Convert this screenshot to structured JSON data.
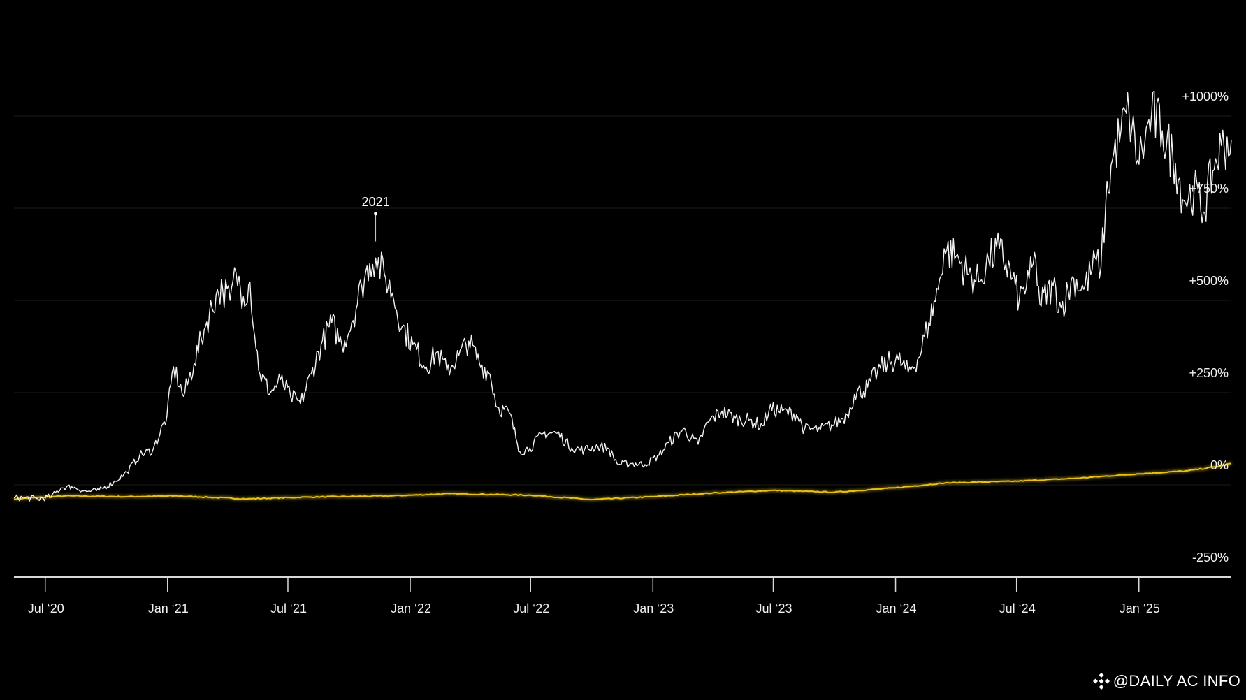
{
  "chart_data": {
    "type": "line",
    "title": "",
    "xlabel": "",
    "ylabel": "",
    "x_range": [
      "2020-05-15",
      "2025-05-20"
    ],
    "ylim": [
      -300,
      1100
    ],
    "y_ticks": [
      {
        "value": 1000,
        "label": "+1000%"
      },
      {
        "value": 750,
        "label": "+750%"
      },
      {
        "value": 500,
        "label": "+500%"
      },
      {
        "value": 250,
        "label": "+250%"
      },
      {
        "value": 0,
        "label": "0%"
      },
      {
        "value": -250,
        "label": "-250%"
      }
    ],
    "x_ticks": [
      {
        "date": "2020-07-01",
        "label": "Jul ‘20"
      },
      {
        "date": "2021-01-01",
        "label": "Jan ‘21"
      },
      {
        "date": "2021-07-01",
        "label": "Jul ‘21"
      },
      {
        "date": "2022-01-01",
        "label": "Jan ‘22"
      },
      {
        "date": "2022-07-01",
        "label": "Jul ‘22"
      },
      {
        "date": "2023-01-01",
        "label": "Jan ‘23"
      },
      {
        "date": "2023-07-01",
        "label": "Jul ‘23"
      },
      {
        "date": "2024-01-01",
        "label": "Jan ‘24"
      },
      {
        "date": "2024-07-01",
        "label": "Jul ‘24"
      },
      {
        "date": "2025-01-01",
        "label": "Jan ‘25"
      }
    ],
    "grid": true,
    "legend": "none",
    "annotations": [
      {
        "label": "2021",
        "date": "2021-11-10",
        "value": 660
      }
    ],
    "series": [
      {
        "color": "#f2f2f2",
        "points": [
          [
            "2020-05-15",
            -35
          ],
          [
            "2020-06-01",
            -35
          ],
          [
            "2020-06-20",
            -38
          ],
          [
            "2020-07-10",
            -32
          ],
          [
            "2020-07-25",
            -8
          ],
          [
            "2020-08-10",
            -5
          ],
          [
            "2020-09-01",
            -18
          ],
          [
            "2020-09-20",
            -15
          ],
          [
            "2020-10-15",
            10
          ],
          [
            "2020-11-01",
            35
          ],
          [
            "2020-11-20",
            80
          ],
          [
            "2020-12-10",
            95
          ],
          [
            "2020-12-31",
            185
          ],
          [
            "2021-01-10",
            320
          ],
          [
            "2021-01-25",
            240
          ],
          [
            "2021-02-10",
            330
          ],
          [
            "2021-02-25",
            420
          ],
          [
            "2021-03-15",
            515
          ],
          [
            "2021-03-25",
            530
          ],
          [
            "2021-04-05",
            500
          ],
          [
            "2021-04-14",
            575
          ],
          [
            "2021-04-25",
            510
          ],
          [
            "2021-05-05",
            550
          ],
          [
            "2021-05-12",
            405
          ],
          [
            "2021-05-20",
            300
          ],
          [
            "2021-06-05",
            250
          ],
          [
            "2021-06-20",
            285
          ],
          [
            "2021-07-05",
            240
          ],
          [
            "2021-07-20",
            220
          ],
          [
            "2021-08-05",
            300
          ],
          [
            "2021-08-20",
            380
          ],
          [
            "2021-09-05",
            440
          ],
          [
            "2021-09-20",
            380
          ],
          [
            "2021-10-05",
            440
          ],
          [
            "2021-10-20",
            540
          ],
          [
            "2021-11-01",
            600
          ],
          [
            "2021-11-10",
            615
          ],
          [
            "2021-11-25",
            560
          ],
          [
            "2021-12-05",
            520
          ],
          [
            "2021-12-20",
            430
          ],
          [
            "2022-01-05",
            380
          ],
          [
            "2022-01-25",
            320
          ],
          [
            "2022-02-10",
            360
          ],
          [
            "2022-02-25",
            310
          ],
          [
            "2022-03-15",
            350
          ],
          [
            "2022-03-30",
            390
          ],
          [
            "2022-04-15",
            330
          ],
          [
            "2022-05-01",
            300
          ],
          [
            "2022-05-12",
            210
          ],
          [
            "2022-05-30",
            195
          ],
          [
            "2022-06-15",
            90
          ],
          [
            "2022-06-30",
            100
          ],
          [
            "2022-07-20",
            140
          ],
          [
            "2022-08-10",
            140
          ],
          [
            "2022-09-01",
            100
          ],
          [
            "2022-09-20",
            95
          ],
          [
            "2022-10-10",
            105
          ],
          [
            "2022-10-25",
            100
          ],
          [
            "2022-11-10",
            55
          ],
          [
            "2022-11-30",
            58
          ],
          [
            "2022-12-20",
            55
          ],
          [
            "2023-01-10",
            80
          ],
          [
            "2023-01-25",
            115
          ],
          [
            "2023-02-15",
            150
          ],
          [
            "2023-03-10",
            110
          ],
          [
            "2023-03-25",
            170
          ],
          [
            "2023-04-15",
            200
          ],
          [
            "2023-05-05",
            180
          ],
          [
            "2023-05-25",
            175
          ],
          [
            "2023-06-15",
            160
          ],
          [
            "2023-06-25",
            205
          ],
          [
            "2023-07-15",
            200
          ],
          [
            "2023-08-05",
            190
          ],
          [
            "2023-08-17",
            150
          ],
          [
            "2023-09-10",
            150
          ],
          [
            "2023-10-01",
            165
          ],
          [
            "2023-10-20",
            190
          ],
          [
            "2023-10-31",
            245
          ],
          [
            "2023-11-20",
            265
          ],
          [
            "2023-12-05",
            310
          ],
          [
            "2023-12-20",
            330
          ],
          [
            "2024-01-05",
            340
          ],
          [
            "2024-01-20",
            305
          ],
          [
            "2024-02-05",
            345
          ],
          [
            "2024-02-20",
            440
          ],
          [
            "2024-03-05",
            530
          ],
          [
            "2024-03-14",
            640
          ],
          [
            "2024-04-01",
            620
          ],
          [
            "2024-04-20",
            570
          ],
          [
            "2024-05-05",
            550
          ],
          [
            "2024-05-20",
            610
          ],
          [
            "2024-06-05",
            640
          ],
          [
            "2024-06-25",
            560
          ],
          [
            "2024-07-05",
            500
          ],
          [
            "2024-07-20",
            560
          ],
          [
            "2024-07-30",
            610
          ],
          [
            "2024-08-05",
            490
          ],
          [
            "2024-08-25",
            540
          ],
          [
            "2024-09-06",
            480
          ],
          [
            "2024-09-25",
            560
          ],
          [
            "2024-10-10",
            530
          ],
          [
            "2024-10-29",
            610
          ],
          [
            "2024-11-05",
            590
          ],
          [
            "2024-11-12",
            760
          ],
          [
            "2024-11-22",
            880
          ],
          [
            "2024-12-05",
            960
          ],
          [
            "2024-12-17",
            1010
          ],
          [
            "2024-12-30",
            880
          ],
          [
            "2025-01-10",
            930
          ],
          [
            "2025-01-20",
            1005
          ],
          [
            "2025-02-05",
            960
          ],
          [
            "2025-02-25",
            870
          ],
          [
            "2025-03-10",
            770
          ],
          [
            "2025-03-25",
            800
          ],
          [
            "2025-04-08",
            740
          ],
          [
            "2025-04-22",
            850
          ],
          [
            "2025-05-05",
            920
          ],
          [
            "2025-05-20",
            935
          ]
        ]
      },
      {
        "color": "#e8c21a",
        "points": [
          [
            "2020-05-15",
            -38
          ],
          [
            "2020-08-01",
            -30
          ],
          [
            "2020-11-01",
            -32
          ],
          [
            "2021-01-15",
            -30
          ],
          [
            "2021-05-01",
            -38
          ],
          [
            "2021-08-01",
            -33
          ],
          [
            "2021-12-01",
            -30
          ],
          [
            "2022-03-01",
            -24
          ],
          [
            "2022-07-01",
            -28
          ],
          [
            "2022-10-01",
            -40
          ],
          [
            "2023-01-01",
            -32
          ],
          [
            "2023-04-01",
            -22
          ],
          [
            "2023-07-01",
            -15
          ],
          [
            "2023-10-01",
            -20
          ],
          [
            "2024-01-01",
            -8
          ],
          [
            "2024-03-15",
            5
          ],
          [
            "2024-07-01",
            10
          ],
          [
            "2024-10-01",
            18
          ],
          [
            "2025-01-01",
            30
          ],
          [
            "2025-03-15",
            38
          ],
          [
            "2025-05-01",
            50
          ],
          [
            "2025-05-20",
            58
          ]
        ]
      }
    ]
  },
  "watermark": {
    "text": "@DAILY AC INFO",
    "icon": "diamond-logo-icon"
  }
}
